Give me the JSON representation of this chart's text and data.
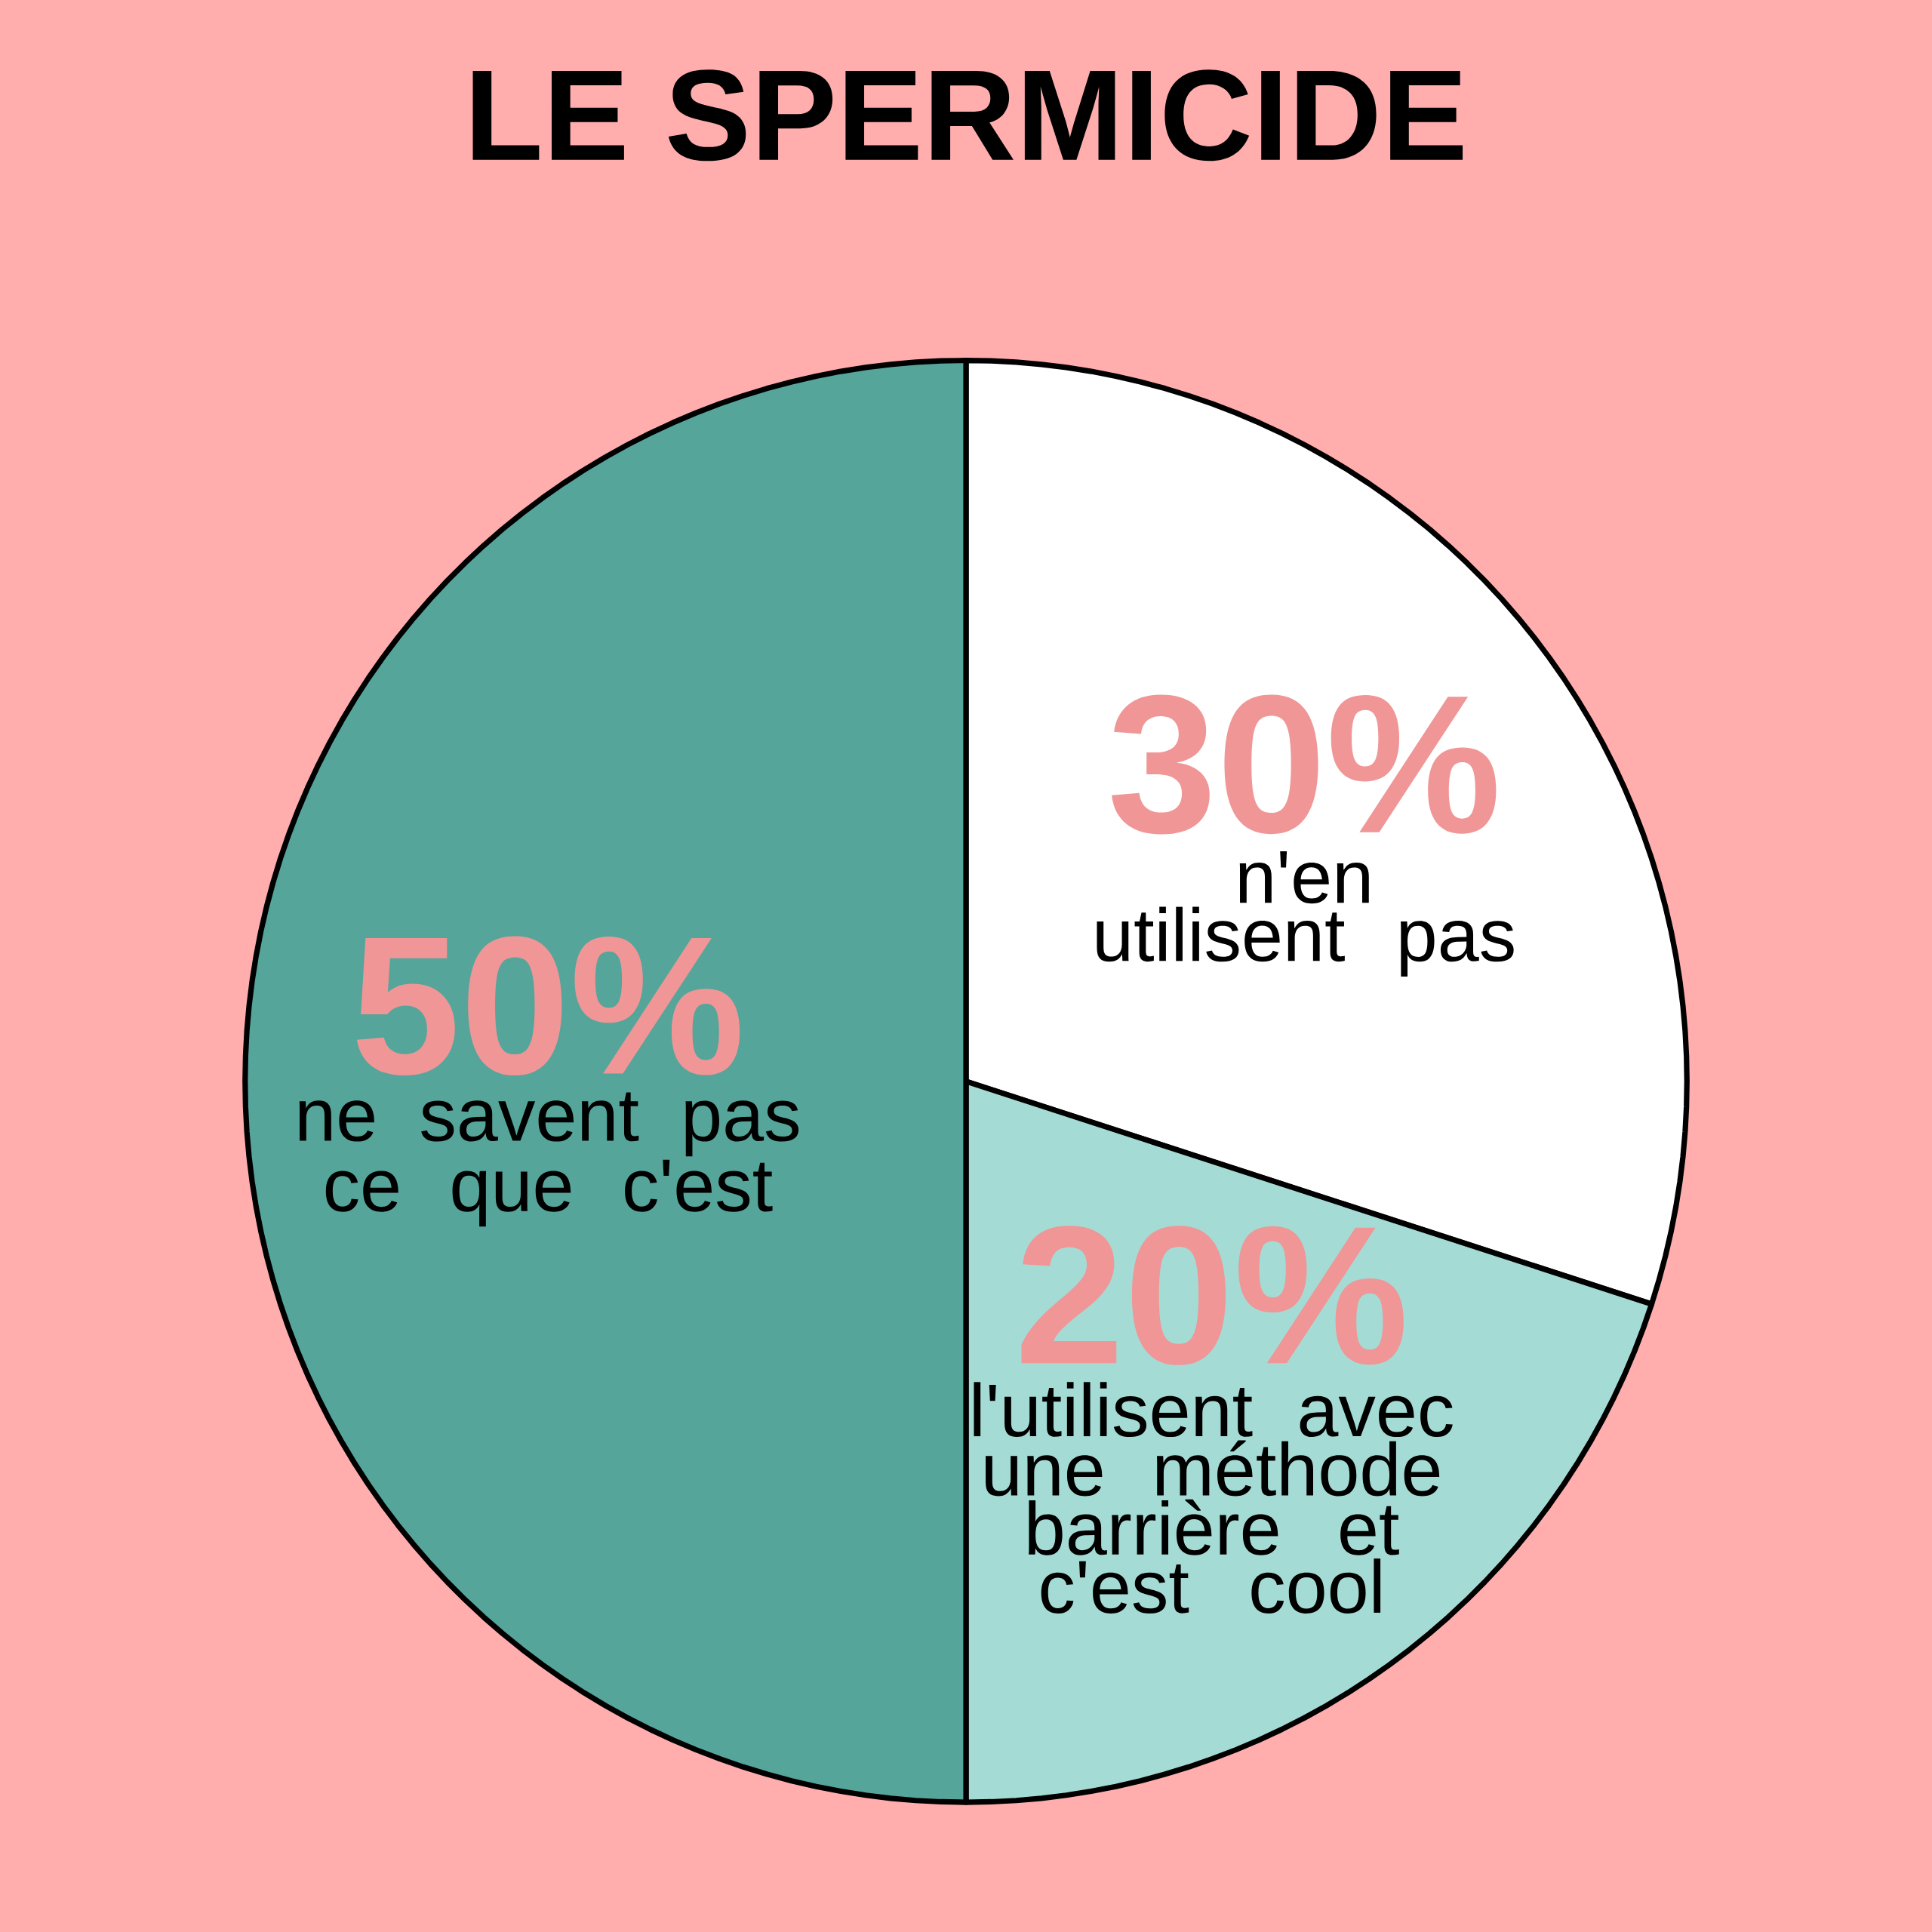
{
  "chart_data": {
    "type": "pie",
    "title": "LE SPERMICIDE",
    "categories": [
      "n'en utilisent pas",
      "l'utilisent avec une méthode barrière et c'est cool",
      "ne savent pas ce que c'est"
    ],
    "values": [
      30,
      20,
      50
    ],
    "value_labels": [
      "30%",
      "20%",
      "50%"
    ],
    "colors": [
      "#ffffff",
      "#a5dbd5",
      "#55a59b"
    ]
  }
}
